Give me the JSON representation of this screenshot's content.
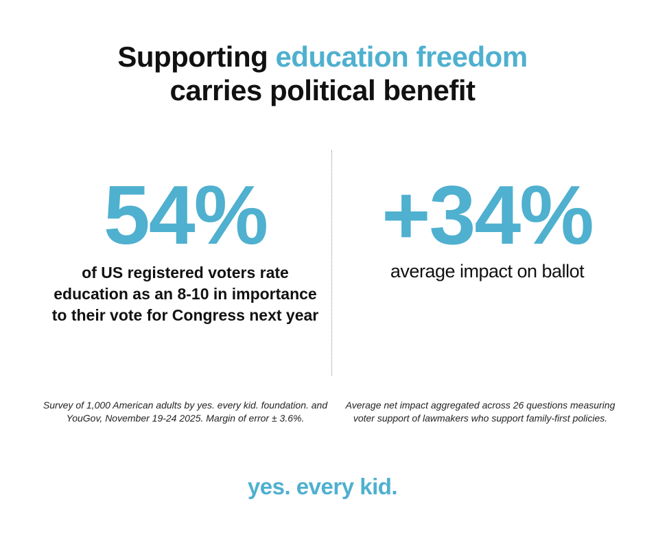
{
  "headline": {
    "part1": "Supporting ",
    "accent": "education freedom",
    "line2": "carries political benefit"
  },
  "stats": [
    {
      "value": "54%",
      "description": "of US registered voters rate education as an 8-10 in importance to their vote for Congress next year",
      "footnote": "Survey of 1,000 American adults by yes. every kid. foundation. and YouGov, November 19-24 2025. Margin of error ± 3.6%."
    },
    {
      "value": "+34%",
      "description": "average impact on ballot",
      "footnote": "Average net impact aggregated across 26 questions measuring voter support of lawmakers who support family-first policies."
    }
  ],
  "logo": "yes. every kid.",
  "colors": {
    "accent": "#4fb0cf",
    "text": "#111111",
    "background": "#ffffff"
  }
}
